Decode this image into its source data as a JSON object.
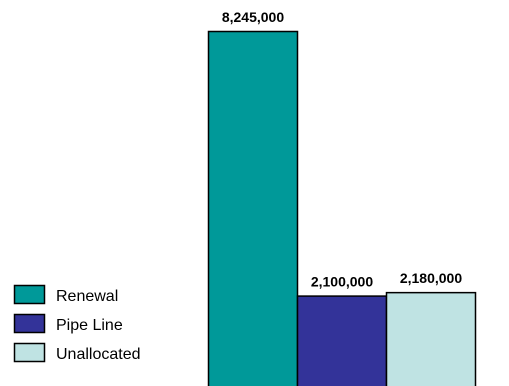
{
  "chart_data": {
    "type": "bar",
    "categories": [
      "Renewal",
      "Pipe Line",
      "Unallocated"
    ],
    "values": [
      8245000,
      2100000,
      2180000
    ],
    "data_labels": [
      "8,245,000",
      "2,100,000",
      "2,180,000"
    ],
    "colors": [
      "#009999",
      "#333399",
      "#bfe3e3"
    ],
    "legend": {
      "placement": "bottom-left",
      "entries": [
        "Renewal",
        "Pipe Line",
        "Unallocated"
      ]
    },
    "grid": false,
    "ylim": [
      0,
      8245000
    ]
  }
}
